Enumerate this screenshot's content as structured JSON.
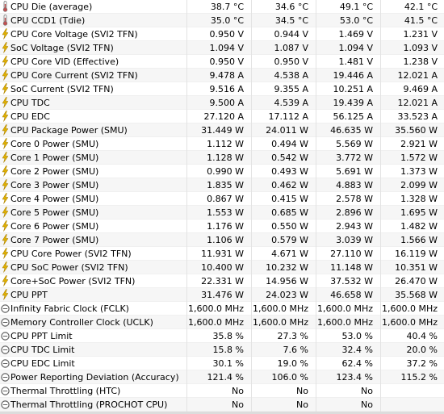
{
  "colors": {
    "thermometer_icon": "#c05050",
    "bolt_icon": "#e0b000",
    "clock_icon": "#606060",
    "row_alt": "#f6f6f6",
    "grid": "#e3e3e3"
  },
  "rows": [
    {
      "icon": "thermometer-icon",
      "name": "CPU Die (average)",
      "values": [
        "38.7 °C",
        "34.6 °C",
        "49.1 °C",
        "42.1 °C"
      ]
    },
    {
      "icon": "thermometer-icon",
      "name": "CPU CCD1 (Tdie)",
      "values": [
        "35.0 °C",
        "34.5 °C",
        "53.0 °C",
        "41.5 °C"
      ]
    },
    {
      "icon": "bolt-icon",
      "name": "CPU Core Voltage (SVI2 TFN)",
      "values": [
        "0.950 V",
        "0.944 V",
        "1.469 V",
        "1.231 V"
      ]
    },
    {
      "icon": "bolt-icon",
      "name": "SoC Voltage (SVI2 TFN)",
      "values": [
        "1.094 V",
        "1.087 V",
        "1.094 V",
        "1.093 V"
      ]
    },
    {
      "icon": "bolt-icon",
      "name": "CPU Core VID (Effective)",
      "values": [
        "0.950 V",
        "0.950 V",
        "1.481 V",
        "1.238 V"
      ]
    },
    {
      "icon": "bolt-icon",
      "name": "CPU Core Current (SVI2 TFN)",
      "values": [
        "9.478 A",
        "4.538 A",
        "19.446 A",
        "12.021 A"
      ]
    },
    {
      "icon": "bolt-icon",
      "name": "SoC Current (SVI2 TFN)",
      "values": [
        "9.516 A",
        "9.355 A",
        "10.251 A",
        "9.469 A"
      ]
    },
    {
      "icon": "bolt-icon",
      "name": "CPU TDC",
      "values": [
        "9.500 A",
        "4.539 A",
        "19.439 A",
        "12.021 A"
      ]
    },
    {
      "icon": "bolt-icon",
      "name": "CPU EDC",
      "values": [
        "27.120 A",
        "17.112 A",
        "56.125 A",
        "33.523 A"
      ]
    },
    {
      "icon": "bolt-icon",
      "name": "CPU Package Power (SMU)",
      "values": [
        "31.449 W",
        "24.011 W",
        "46.635 W",
        "35.560 W"
      ]
    },
    {
      "icon": "bolt-icon",
      "name": "Core 0 Power (SMU)",
      "values": [
        "1.112 W",
        "0.494 W",
        "5.569 W",
        "2.921 W"
      ]
    },
    {
      "icon": "bolt-icon",
      "name": "Core 1 Power (SMU)",
      "values": [
        "1.128 W",
        "0.542 W",
        "3.772 W",
        "1.572 W"
      ]
    },
    {
      "icon": "bolt-icon",
      "name": "Core 2 Power (SMU)",
      "values": [
        "0.990 W",
        "0.493 W",
        "5.691 W",
        "1.373 W"
      ]
    },
    {
      "icon": "bolt-icon",
      "name": "Core 3 Power (SMU)",
      "values": [
        "1.835 W",
        "0.462 W",
        "4.883 W",
        "2.099 W"
      ]
    },
    {
      "icon": "bolt-icon",
      "name": "Core 4 Power (SMU)",
      "values": [
        "0.867 W",
        "0.415 W",
        "2.578 W",
        "1.328 W"
      ]
    },
    {
      "icon": "bolt-icon",
      "name": "Core 5 Power (SMU)",
      "values": [
        "1.553 W",
        "0.685 W",
        "2.896 W",
        "1.695 W"
      ]
    },
    {
      "icon": "bolt-icon",
      "name": "Core 6 Power (SMU)",
      "values": [
        "1.176 W",
        "0.550 W",
        "2.943 W",
        "1.482 W"
      ]
    },
    {
      "icon": "bolt-icon",
      "name": "Core 7 Power (SMU)",
      "values": [
        "1.106 W",
        "0.579 W",
        "3.039 W",
        "1.566 W"
      ]
    },
    {
      "icon": "bolt-icon",
      "name": "CPU Core Power (SVI2 TFN)",
      "values": [
        "11.931 W",
        "4.671 W",
        "27.110 W",
        "16.119 W"
      ]
    },
    {
      "icon": "bolt-icon",
      "name": "CPU SoC Power (SVI2 TFN)",
      "values": [
        "10.400 W",
        "10.232 W",
        "11.148 W",
        "10.351 W"
      ]
    },
    {
      "icon": "bolt-icon",
      "name": "Core+SoC Power (SVI2 TFN)",
      "values": [
        "22.331 W",
        "14.956 W",
        "37.532 W",
        "26.470 W"
      ]
    },
    {
      "icon": "bolt-icon",
      "name": "CPU PPT",
      "values": [
        "31.476 W",
        "24.023 W",
        "46.658 W",
        "35.568 W"
      ]
    },
    {
      "icon": "clock-icon",
      "name": "Infinity Fabric Clock (FCLK)",
      "values": [
        "1,600.0 MHz",
        "1,600.0 MHz",
        "1,600.0 MHz",
        "1,600.0 MHz"
      ]
    },
    {
      "icon": "clock-icon",
      "name": "Memory Controller Clock (UCLK)",
      "values": [
        "1,600.0 MHz",
        "1,600.0 MHz",
        "1,600.0 MHz",
        "1,600.0 MHz"
      ]
    },
    {
      "icon": "clock-icon",
      "name": "CPU PPT Limit",
      "values": [
        "35.8 %",
        "27.3 %",
        "53.0 %",
        "40.4 %"
      ]
    },
    {
      "icon": "clock-icon",
      "name": "CPU TDC Limit",
      "values": [
        "15.8 %",
        "7.6 %",
        "32.4 %",
        "20.0 %"
      ]
    },
    {
      "icon": "clock-icon",
      "name": "CPU EDC Limit",
      "values": [
        "30.1 %",
        "19.0 %",
        "62.4 %",
        "37.2 %"
      ]
    },
    {
      "icon": "clock-icon",
      "name": "Power Reporting Deviation (Accuracy)",
      "values": [
        "121.4 %",
        "106.0 %",
        "123.4 %",
        "115.2 %"
      ]
    },
    {
      "icon": "clock-icon",
      "name": "Thermal Throttling (HTC)",
      "values": [
        "No",
        "No",
        "No",
        ""
      ]
    },
    {
      "icon": "clock-icon",
      "name": "Thermal Throttling (PROCHOT CPU)",
      "values": [
        "No",
        "No",
        "No",
        ""
      ]
    }
  ]
}
